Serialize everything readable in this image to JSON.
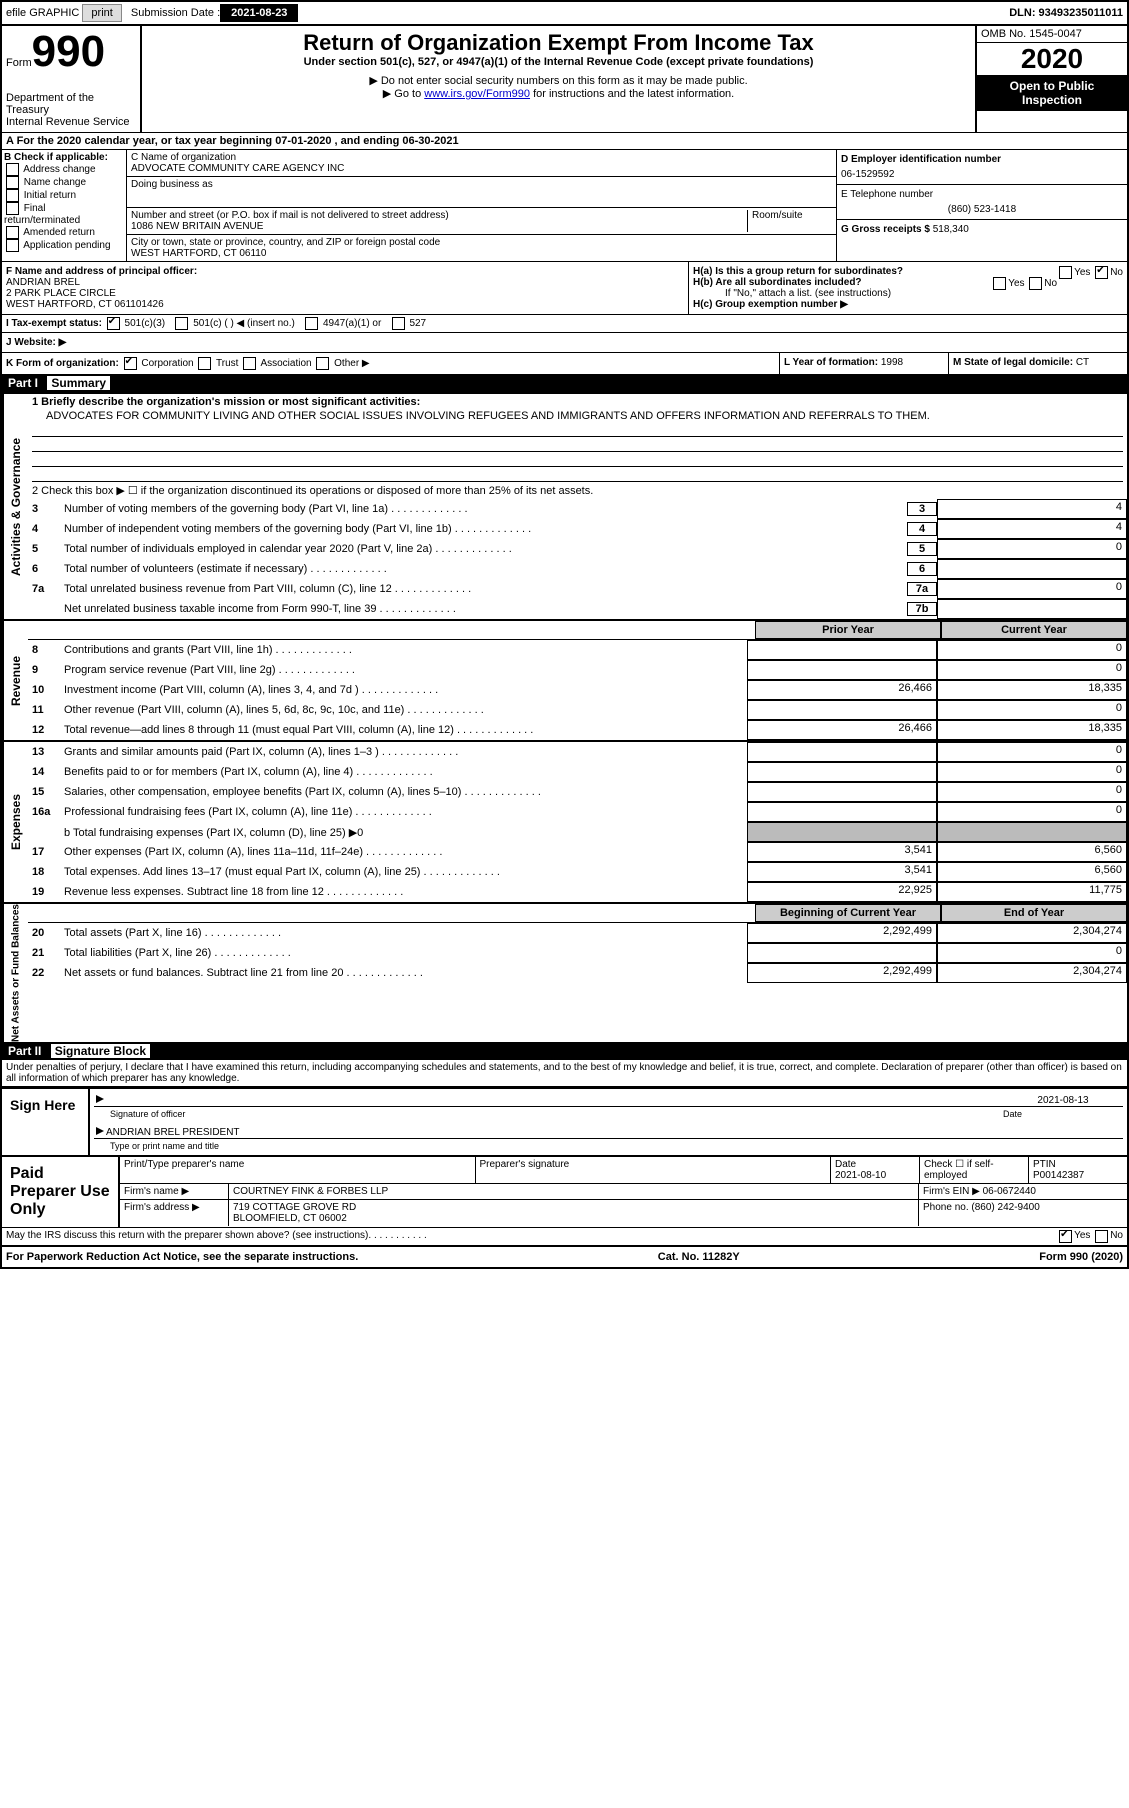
{
  "top": {
    "efile": "efile GRAPHIC",
    "print": "print",
    "sub_label": "Submission Date :",
    "sub_date": "2021-08-23",
    "dln": "DLN: 93493235011011"
  },
  "header": {
    "form": "Form",
    "num": "990",
    "dept": "Department of the Treasury\nInternal Revenue Service",
    "title": "Return of Organization Exempt From Income Tax",
    "sub1": "Under section 501(c), 527, or 4947(a)(1) of the Internal Revenue Code (except private foundations)",
    "sub2": "▶ Do not enter social security numbers on this form as it may be made public.",
    "sub3_pre": "▶ Go to ",
    "link": "www.irs.gov/Form990",
    "sub3_post": " for instructions and the latest information.",
    "omb": "OMB No. 1545-0047",
    "year": "2020",
    "open": "Open to Public Inspection"
  },
  "a_row": "A For the 2020 calendar year, or tax year beginning 07-01-2020     , and ending 06-30-2021",
  "b": {
    "label": "B Check if applicable:",
    "items": [
      "Address change",
      "Name change",
      "Initial return",
      "Final return/terminated",
      "Amended return",
      "Application pending"
    ]
  },
  "c": {
    "name_label": "C Name of organization",
    "name": "ADVOCATE COMMUNITY CARE AGENCY INC",
    "dba_label": "Doing business as",
    "dba": "",
    "addr_label": "Number and street (or P.O. box if mail is not delivered to street address)",
    "room_label": "Room/suite",
    "addr": "1086 NEW BRITAIN AVENUE",
    "city_label": "City or town, state or province, country, and ZIP or foreign postal code",
    "city": "WEST HARTFORD, CT  06110"
  },
  "d": {
    "ein_label": "D Employer identification number",
    "ein": "06-1529592",
    "phone_label": "E Telephone number",
    "phone": "(860) 523-1418",
    "gross_label": "G Gross receipts $",
    "gross": "518,340"
  },
  "f": {
    "label": "F  Name and address of principal officer:",
    "name": "ANDRIAN BREL",
    "addr1": "2 PARK PLACE CIRCLE",
    "addr2": "WEST HARTFORD, CT  061101426"
  },
  "h": {
    "a": "H(a)  Is this a group return for subordinates?",
    "b": "H(b)  Are all subordinates included?",
    "b_note": "If \"No,\" attach a list. (see instructions)",
    "c": "H(c)  Group exemption number ▶",
    "yes": "Yes",
    "no": "No"
  },
  "i": {
    "label": "I  Tax-exempt status:",
    "opts": [
      "501(c)(3)",
      "501(c) (  ) ◀ (insert no.)",
      "4947(a)(1) or",
      "527"
    ]
  },
  "j": {
    "label": "J  Website: ▶",
    "val": ""
  },
  "k": {
    "label": "K Form of organization:",
    "opts": [
      "Corporation",
      "Trust",
      "Association",
      "Other ▶"
    ]
  },
  "l": {
    "label": "L Year of formation:",
    "val": "1998"
  },
  "m": {
    "label": "M State of legal domicile:",
    "val": "CT"
  },
  "part1": {
    "num": "Part I",
    "title": "Summary"
  },
  "activities": {
    "q1": "1  Briefly describe the organization's mission or most significant activities:",
    "mission": "ADVOCATES FOR COMMUNITY LIVING AND OTHER SOCIAL ISSUES INVOLVING REFUGEES AND IMMIGRANTS AND OFFERS INFORMATION AND REFERRALS TO THEM.",
    "q2": "2   Check this box ▶ ☐  if the organization discontinued its operations or disposed of more than 25% of its net assets.",
    "rows": [
      {
        "n": "3",
        "t": "Number of voting members of the governing body (Part VI, line 1a)",
        "b": "3",
        "v": "4"
      },
      {
        "n": "4",
        "t": "Number of independent voting members of the governing body (Part VI, line 1b)",
        "b": "4",
        "v": "4"
      },
      {
        "n": "5",
        "t": "Total number of individuals employed in calendar year 2020 (Part V, line 2a)",
        "b": "5",
        "v": "0"
      },
      {
        "n": "6",
        "t": "Total number of volunteers (estimate if necessary)",
        "b": "6",
        "v": ""
      },
      {
        "n": "7a",
        "t": "Total unrelated business revenue from Part VIII, column (C), line 12",
        "b": "7a",
        "v": "0"
      },
      {
        "n": "",
        "t": "Net unrelated business taxable income from Form 990-T, line 39",
        "b": "7b",
        "v": ""
      }
    ]
  },
  "revenue": {
    "header_prior": "Prior Year",
    "header_curr": "Current Year",
    "rows": [
      {
        "n": "8",
        "t": "Contributions and grants (Part VIII, line 1h)",
        "p": "",
        "c": "0"
      },
      {
        "n": "9",
        "t": "Program service revenue (Part VIII, line 2g)",
        "p": "",
        "c": "0"
      },
      {
        "n": "10",
        "t": "Investment income (Part VIII, column (A), lines 3, 4, and 7d )",
        "p": "26,466",
        "c": "18,335"
      },
      {
        "n": "11",
        "t": "Other revenue (Part VIII, column (A), lines 5, 6d, 8c, 9c, 10c, and 11e)",
        "p": "",
        "c": "0"
      },
      {
        "n": "12",
        "t": "Total revenue—add lines 8 through 11 (must equal Part VIII, column (A), line 12)",
        "p": "26,466",
        "c": "18,335"
      }
    ]
  },
  "expenses": {
    "rows": [
      {
        "n": "13",
        "t": "Grants and similar amounts paid (Part IX, column (A), lines 1–3 )",
        "p": "",
        "c": "0"
      },
      {
        "n": "14",
        "t": "Benefits paid to or for members (Part IX, column (A), line 4)",
        "p": "",
        "c": "0"
      },
      {
        "n": "15",
        "t": "Salaries, other compensation, employee benefits (Part IX, column (A), lines 5–10)",
        "p": "",
        "c": "0"
      },
      {
        "n": "16a",
        "t": "Professional fundraising fees (Part IX, column (A), line 11e)",
        "p": "",
        "c": "0"
      }
    ],
    "b_line": "b  Total fundraising expenses (Part IX, column (D), line 25) ▶0",
    "rows2": [
      {
        "n": "17",
        "t": "Other expenses (Part IX, column (A), lines 11a–11d, 11f–24e)",
        "p": "3,541",
        "c": "6,560"
      },
      {
        "n": "18",
        "t": "Total expenses. Add lines 13–17 (must equal Part IX, column (A), line 25)",
        "p": "3,541",
        "c": "6,560"
      },
      {
        "n": "19",
        "t": "Revenue less expenses. Subtract line 18 from line 12",
        "p": "22,925",
        "c": "11,775"
      }
    ]
  },
  "net": {
    "header_beg": "Beginning of Current Year",
    "header_end": "End of Year",
    "rows": [
      {
        "n": "20",
        "t": "Total assets (Part X, line 16)",
        "p": "2,292,499",
        "c": "2,304,274"
      },
      {
        "n": "21",
        "t": "Total liabilities (Part X, line 26)",
        "p": "",
        "c": "0"
      },
      {
        "n": "22",
        "t": "Net assets or fund balances. Subtract line 21 from line 20",
        "p": "2,292,499",
        "c": "2,304,274"
      }
    ]
  },
  "part2": {
    "num": "Part II",
    "title": "Signature Block"
  },
  "penalty": "Under penalties of perjury, I declare that I have examined this return, including accompanying schedules and statements, and to the best of my knowledge and belief, it is true, correct, and complete. Declaration of preparer (other than officer) is based on all information of which preparer has any knowledge.",
  "sign": {
    "here": "Sign Here",
    "sig_label": "Signature of officer",
    "date": "2021-08-13",
    "date_label": "Date",
    "name": "ANDRIAN BREL  PRESIDENT",
    "name_label": "Type or print name and title"
  },
  "paid": {
    "label": "Paid Preparer Use Only",
    "h1": "Print/Type preparer's name",
    "h2": "Preparer's signature",
    "h3": "Date",
    "h4": "Check ☐ if self-employed",
    "h5": "PTIN",
    "date": "2021-08-10",
    "ptin": "P00142387",
    "firm_label": "Firm's name    ▶",
    "firm": "COURTNEY FINK & FORBES LLP",
    "ein_label": "Firm's EIN ▶",
    "ein": "06-0672440",
    "addr_label": "Firm's address ▶",
    "addr1": "719 COTTAGE GROVE RD",
    "addr2": "BLOOMFIELD, CT  06002",
    "phone_label": "Phone no.",
    "phone": "(860) 242-9400"
  },
  "discuss": {
    "q": "May the IRS discuss this return with the preparer shown above? (see instructions)",
    "yes": "Yes",
    "no": "No"
  },
  "footer": {
    "l": "For Paperwork Reduction Act Notice, see the separate instructions.",
    "c": "Cat. No. 11282Y",
    "r": "Form 990 (2020)"
  }
}
